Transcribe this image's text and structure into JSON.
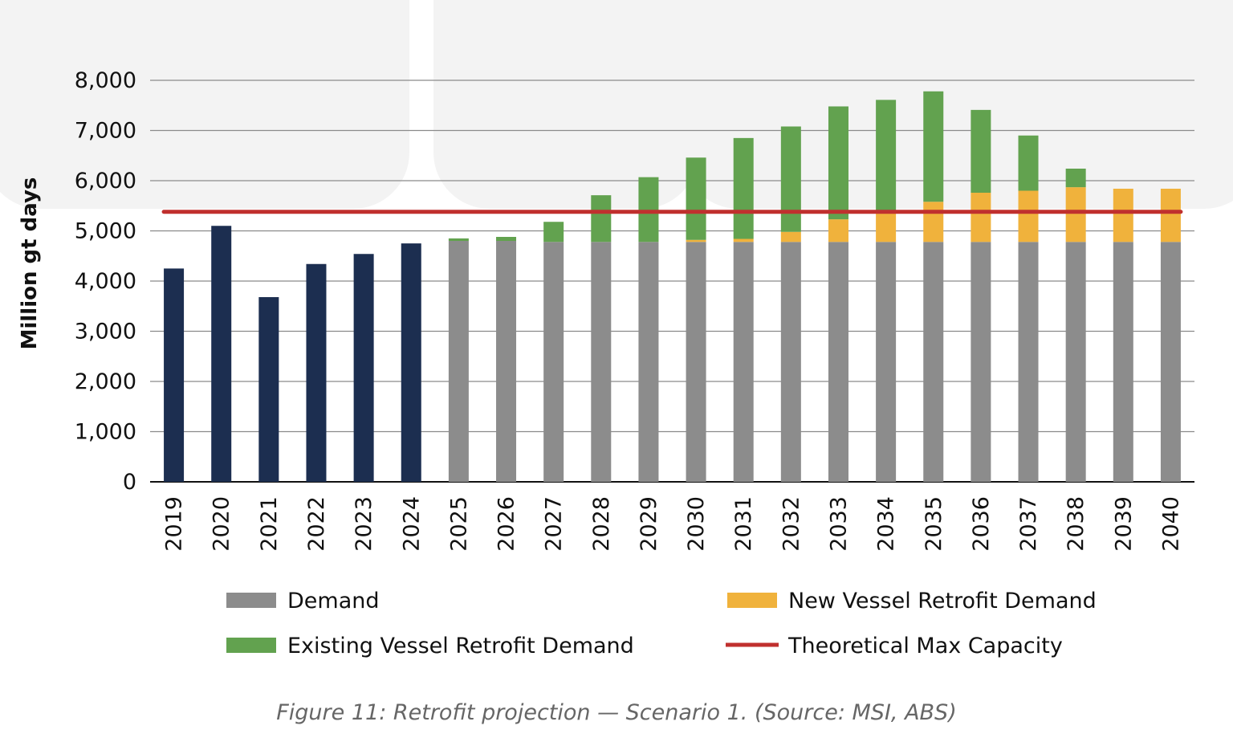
{
  "colors": {
    "historical": "#1c2e50",
    "demand": "#8c8c8c",
    "existing_retrofit": "#62a24f",
    "new_retrofit": "#f0b23c",
    "max_capacity": "#c0302e",
    "grid": "#8a8a8a"
  },
  "chart_data": {
    "type": "bar",
    "stacked": true,
    "ylabel": "Million gt days",
    "ylim": [
      0,
      8000
    ],
    "yticks": [
      0,
      1000,
      2000,
      3000,
      4000,
      5000,
      6000,
      7000,
      8000
    ],
    "ytick_labels": [
      "0",
      "1,000",
      "2,000",
      "3,000",
      "4,000",
      "5,000",
      "6,000",
      "7,000",
      "8,000"
    ],
    "categories": [
      "2019",
      "2020",
      "2021",
      "2022",
      "2023",
      "2024",
      "2025",
      "2026",
      "2027",
      "2028",
      "2029",
      "2030",
      "2031",
      "2032",
      "2033",
      "2034",
      "2035",
      "2036",
      "2037",
      "2038",
      "2039",
      "2040"
    ],
    "grid": true,
    "legend_position": "bottom",
    "historical_values": [
      4250,
      5100,
      3680,
      4340,
      4540,
      4750,
      null,
      null,
      null,
      null,
      null,
      null,
      null,
      null,
      null,
      null,
      null,
      null,
      null,
      null,
      null,
      null
    ],
    "series": [
      {
        "name": "Demand",
        "values": [
          null,
          null,
          null,
          null,
          null,
          null,
          4800,
          4800,
          4780,
          4780,
          4780,
          4780,
          4780,
          4780,
          4780,
          4780,
          4780,
          4780,
          4780,
          4780,
          4780,
          4780
        ]
      },
      {
        "name": "New Vessel Retrofit Demand",
        "values": [
          null,
          null,
          null,
          null,
          null,
          null,
          0,
          0,
          0,
          0,
          0,
          40,
          60,
          200,
          450,
          600,
          800,
          980,
          1020,
          1090,
          1060,
          1060
        ]
      },
      {
        "name": "Existing Vessel Retrofit Demand",
        "values": [
          null,
          null,
          null,
          null,
          null,
          null,
          50,
          80,
          400,
          930,
          1290,
          1640,
          2010,
          2100,
          2250,
          2230,
          2200,
          1650,
          1100,
          370,
          0,
          0
        ]
      }
    ],
    "line": {
      "name": "Theoretical Max Capacity",
      "value": 5380
    }
  },
  "legend": {
    "demand": "Demand",
    "new_retrofit": "New Vessel Retrofit Demand",
    "existing_retrofit": "Existing Vessel Retrofit Demand",
    "max_capacity": "Theoretical Max Capacity"
  },
  "caption": "Figure 11: Retrofit projection — Scenario 1. (Source: MSI, ABS)"
}
